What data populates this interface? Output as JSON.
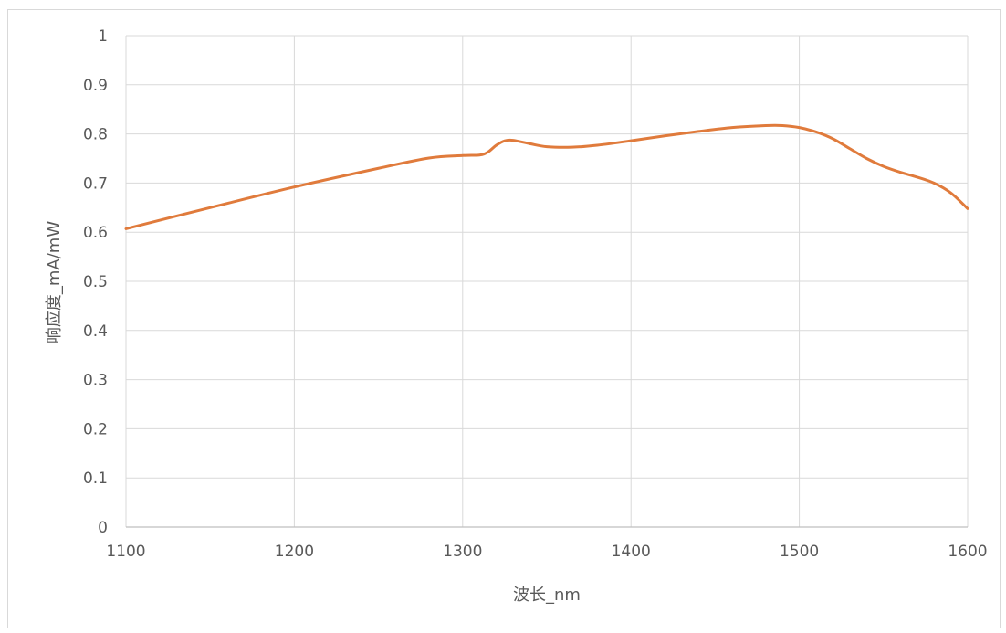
{
  "chart_data": {
    "type": "line",
    "xlabel": "波长_nm",
    "ylabel": "响应度_mA/mW",
    "xlim": [
      1100,
      1600
    ],
    "ylim": [
      0,
      1
    ],
    "x_ticks": [
      "1100",
      "1200",
      "1300",
      "1400",
      "1500",
      "1600"
    ],
    "y_ticks": [
      "0",
      "0.1",
      "0.2",
      "0.3",
      "0.4",
      "0.5",
      "0.6",
      "0.7",
      "0.8",
      "0.9",
      "1"
    ],
    "grid": true,
    "series": [
      {
        "color": "#e07b3c",
        "x": [
          1100,
          1150,
          1200,
          1250,
          1280,
          1300,
          1310,
          1315,
          1320,
          1325,
          1330,
          1340,
          1350,
          1365,
          1380,
          1400,
          1420,
          1440,
          1460,
          1480,
          1490,
          1500,
          1510,
          1520,
          1530,
          1540,
          1550,
          1560,
          1570,
          1580,
          1590,
          1600
        ],
        "y": [
          0.607,
          0.65,
          0.692,
          0.73,
          0.751,
          0.756,
          0.757,
          0.763,
          0.777,
          0.786,
          0.787,
          0.78,
          0.774,
          0.773,
          0.777,
          0.786,
          0.796,
          0.805,
          0.813,
          0.817,
          0.817,
          0.813,
          0.804,
          0.79,
          0.77,
          0.75,
          0.734,
          0.722,
          0.712,
          0.7,
          0.68,
          0.648
        ]
      }
    ]
  }
}
